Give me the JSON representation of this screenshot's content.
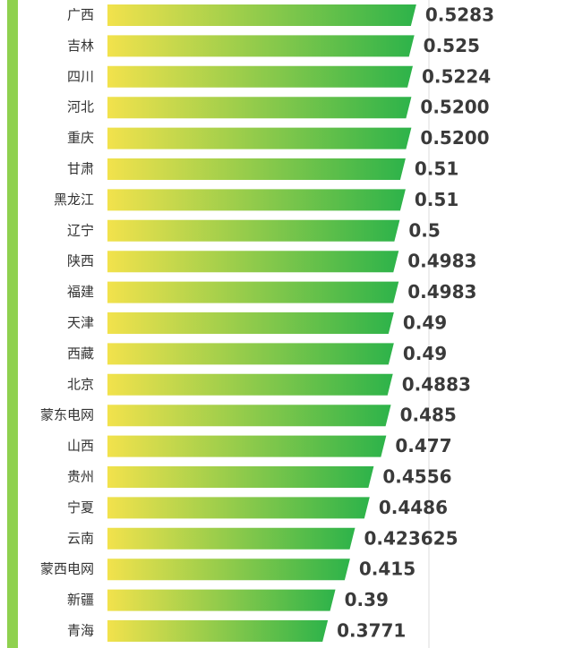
{
  "chart_data": {
    "type": "bar",
    "orientation": "horizontal",
    "categories": [
      "广西",
      "吉林",
      "四川",
      "河北",
      "重庆",
      "甘肃",
      "黑龙江",
      "辽宁",
      "陕西",
      "福建",
      "天津",
      "西藏",
      "北京",
      "蒙东电网",
      "山西",
      "贵州",
      "宁夏",
      "云南",
      "蒙西电网",
      "新疆",
      "青海"
    ],
    "values": [
      0.5283,
      0.525,
      0.5224,
      0.52,
      0.52,
      0.51,
      0.51,
      0.5,
      0.4983,
      0.4983,
      0.49,
      0.49,
      0.4883,
      0.485,
      0.477,
      0.4556,
      0.4486,
      0.423625,
      0.415,
      0.39,
      0.3771
    ],
    "value_labels": [
      "0.5283",
      "0.525",
      "0.5224",
      "0.5200",
      "0.5200",
      "0.51",
      "0.51",
      "0.5",
      "0.4983",
      "0.4983",
      "0.49",
      "0.49",
      "0.4883",
      "0.485",
      "0.477",
      "0.4556",
      "0.4486",
      "0.423625",
      "0.415",
      "0.39",
      "0.3771"
    ],
    "color_start": "#f2e24c",
    "color_end": "#2db34a",
    "xlim": [
      0,
      0.55
    ]
  }
}
